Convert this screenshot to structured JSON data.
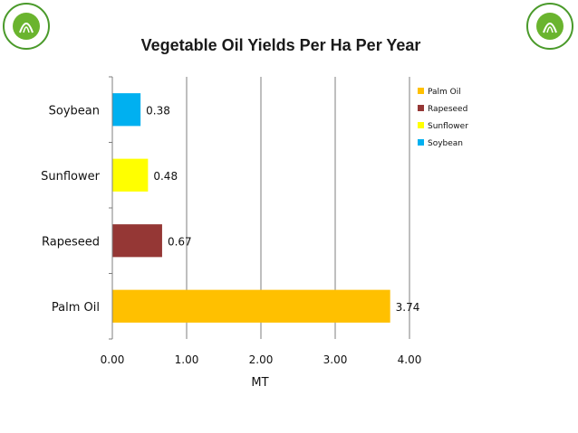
{
  "logos": [
    {
      "icon": "green-palm-sustainability-logo",
      "text_top": "GreenPalm",
      "text_bottom": "SUSTAINABILITY"
    },
    {
      "icon": "green-palm-sustainability-logo",
      "text_top": "GreenPalm",
      "text_bottom": "SUSTAINABILITY"
    }
  ],
  "chart_data": {
    "type": "bar",
    "orientation": "horizontal",
    "title": "Vegetable Oil Yields Per Ha Per Year",
    "xlabel": "MT",
    "ylabel": "",
    "xlim": [
      0,
      4
    ],
    "xticks": [
      "0.00",
      "1.00",
      "2.00",
      "3.00",
      "4.00"
    ],
    "grid": "vertical",
    "legend_position": "top-right",
    "categories": [
      "Palm Oil",
      "Rapeseed",
      "Sunflower",
      "Soybean"
    ],
    "values": [
      3.74,
      0.67,
      0.48,
      0.38
    ],
    "data_labels": [
      "3.74",
      "0.67",
      "0.48",
      "0.38"
    ],
    "colors": [
      "#FFC000",
      "#953735",
      "#FFFF00",
      "#00B0F0"
    ],
    "legend": [
      "Palm Oil",
      "Rapeseed",
      "Sunflower",
      "Soybean"
    ]
  }
}
